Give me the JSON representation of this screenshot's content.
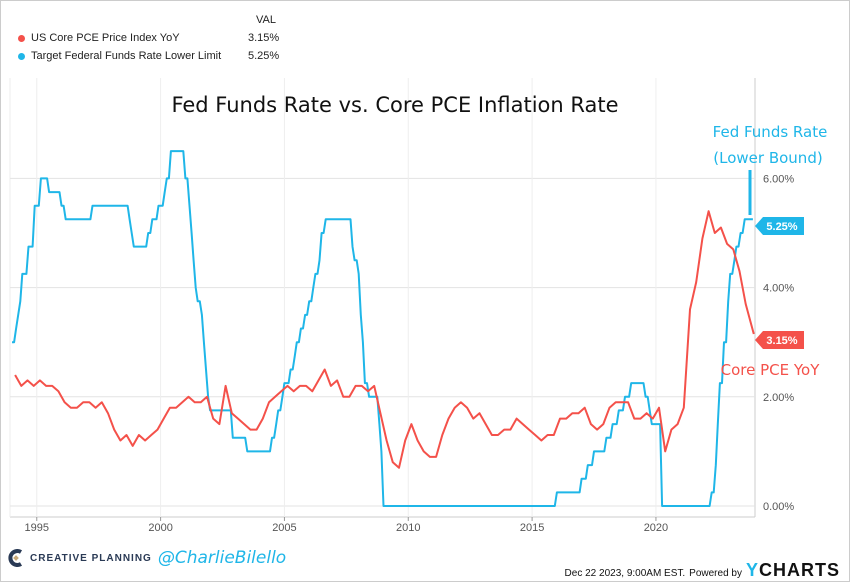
{
  "legend": {
    "header": "VAL",
    "items": [
      {
        "label": "US Core PCE Price Index YoY",
        "value": "3.15%",
        "color": "#f4514a"
      },
      {
        "label": "Target Federal Funds Rate Lower Limit",
        "value": "5.25%",
        "color": "#1fb6e8"
      }
    ]
  },
  "footer": {
    "brand": "CREATIVE PLANNING",
    "handle": "@CharlieBilello",
    "timestamp": "Dec 22 2023, 9:00AM EST.",
    "powered_by": "Powered by",
    "ycharts_y": "Y",
    "ycharts_rest": "CHARTS"
  },
  "chart_data": {
    "type": "line",
    "title": "Fed Funds Rate vs. Core PCE Inflation Rate",
    "xlabel": "",
    "ylabel": "",
    "xlim": [
      1994.0,
      2024.0
    ],
    "ylim": [
      0,
      7
    ],
    "x_ticks": [
      "1995",
      "2000",
      "2005",
      "2010",
      "2015",
      "2020"
    ],
    "y_ticks": [
      "0.00%",
      "2.00%",
      "4.00%",
      "6.00%"
    ],
    "grid": true,
    "annotations": {
      "fed_label_line1": "Fed Funds Rate",
      "fed_label_line2": "(Lower Bound)",
      "pce_label": "Core PCE YoY",
      "fed_last": "5.25%",
      "pce_last": "3.15%"
    },
    "series": [
      {
        "name": "Target Federal Funds Rate Lower Limit",
        "color": "#1fb6e8",
        "step_changes": [
          [
            1994.0,
            3.0
          ],
          [
            1994.1,
            3.25
          ],
          [
            1994.2,
            3.5
          ],
          [
            1994.3,
            3.75
          ],
          [
            1994.4,
            4.25
          ],
          [
            1994.6,
            4.75
          ],
          [
            1994.85,
            5.5
          ],
          [
            1995.1,
            6.0
          ],
          [
            1995.5,
            5.75
          ],
          [
            1995.95,
            5.5
          ],
          [
            1996.1,
            5.25
          ],
          [
            1997.2,
            5.5
          ],
          [
            1998.7,
            5.25
          ],
          [
            1998.8,
            5.0
          ],
          [
            1998.9,
            4.75
          ],
          [
            1999.5,
            5.0
          ],
          [
            1999.65,
            5.25
          ],
          [
            1999.9,
            5.5
          ],
          [
            2000.1,
            5.75
          ],
          [
            2000.2,
            6.0
          ],
          [
            2000.4,
            6.5
          ],
          [
            2001.0,
            6.0
          ],
          [
            2001.1,
            5.5
          ],
          [
            2001.2,
            5.0
          ],
          [
            2001.3,
            4.5
          ],
          [
            2001.4,
            4.0
          ],
          [
            2001.5,
            3.75
          ],
          [
            2001.65,
            3.5
          ],
          [
            2001.7,
            3.0
          ],
          [
            2001.8,
            2.5
          ],
          [
            2001.85,
            2.0
          ],
          [
            2001.95,
            1.75
          ],
          [
            2002.85,
            1.25
          ],
          [
            2003.5,
            1.0
          ],
          [
            2004.5,
            1.25
          ],
          [
            2004.65,
            1.5
          ],
          [
            2004.75,
            1.75
          ],
          [
            2004.9,
            2.0
          ],
          [
            2005.0,
            2.25
          ],
          [
            2005.2,
            2.5
          ],
          [
            2005.35,
            2.75
          ],
          [
            2005.5,
            3.0
          ],
          [
            2005.65,
            3.25
          ],
          [
            2005.8,
            3.5
          ],
          [
            2005.95,
            3.75
          ],
          [
            2006.1,
            4.0
          ],
          [
            2006.2,
            4.25
          ],
          [
            2006.35,
            4.5
          ],
          [
            2006.45,
            4.75
          ],
          [
            2006.5,
            5.0
          ],
          [
            2006.6,
            5.25
          ],
          [
            2007.7,
            4.75
          ],
          [
            2007.8,
            4.5
          ],
          [
            2007.95,
            4.25
          ],
          [
            2008.05,
            3.5
          ],
          [
            2008.1,
            3.0
          ],
          [
            2008.2,
            2.25
          ],
          [
            2008.35,
            2.0
          ],
          [
            2008.8,
            1.5
          ],
          [
            2008.85,
            1.0
          ],
          [
            2008.95,
            0.0
          ],
          [
            2015.95,
            0.25
          ],
          [
            2016.95,
            0.5
          ],
          [
            2017.2,
            0.75
          ],
          [
            2017.45,
            1.0
          ],
          [
            2017.95,
            1.25
          ],
          [
            2018.2,
            1.5
          ],
          [
            2018.45,
            1.75
          ],
          [
            2018.7,
            2.0
          ],
          [
            2018.95,
            2.25
          ],
          [
            2019.55,
            2.0
          ],
          [
            2019.7,
            1.75
          ],
          [
            2019.8,
            1.5
          ],
          [
            2020.2,
            0.0
          ],
          [
            2022.2,
            0.25
          ],
          [
            2022.35,
            0.75
          ],
          [
            2022.45,
            1.5
          ],
          [
            2022.55,
            2.25
          ],
          [
            2022.7,
            3.0
          ],
          [
            2022.85,
            3.75
          ],
          [
            2022.95,
            4.25
          ],
          [
            2023.1,
            4.5
          ],
          [
            2023.2,
            4.75
          ],
          [
            2023.35,
            5.0
          ],
          [
            2023.55,
            5.25
          ],
          [
            2023.96,
            5.25
          ]
        ]
      },
      {
        "name": "US Core PCE Price Index YoY",
        "color": "#f4514a",
        "start": 1994.0,
        "step": 0.25,
        "values": [
          2.4,
          2.2,
          2.3,
          2.2,
          2.3,
          2.2,
          2.2,
          2.1,
          1.9,
          1.8,
          1.8,
          1.9,
          1.9,
          1.8,
          1.9,
          1.7,
          1.4,
          1.2,
          1.3,
          1.1,
          1.3,
          1.2,
          1.3,
          1.4,
          1.6,
          1.8,
          1.8,
          1.9,
          2.0,
          1.9,
          1.9,
          2.0,
          1.6,
          1.5,
          2.2,
          1.7,
          1.6,
          1.5,
          1.4,
          1.4,
          1.6,
          1.9,
          2.0,
          2.1,
          2.2,
          2.1,
          2.2,
          2.2,
          2.1,
          2.3,
          2.5,
          2.2,
          2.3,
          2.0,
          2.0,
          2.2,
          2.2,
          2.1,
          2.2,
          1.7,
          1.2,
          0.8,
          0.7,
          1.2,
          1.5,
          1.2,
          1.0,
          0.9,
          0.9,
          1.3,
          1.6,
          1.8,
          1.9,
          1.8,
          1.6,
          1.7,
          1.5,
          1.3,
          1.3,
          1.4,
          1.4,
          1.6,
          1.5,
          1.4,
          1.3,
          1.2,
          1.3,
          1.3,
          1.6,
          1.6,
          1.7,
          1.7,
          1.8,
          1.5,
          1.4,
          1.5,
          1.8,
          1.9,
          1.9,
          1.9,
          1.6,
          1.6,
          1.7,
          1.6,
          1.8,
          1.0,
          1.4,
          1.5,
          1.8,
          3.6,
          4.1,
          4.9,
          5.4,
          5.0,
          5.1,
          4.8,
          4.7,
          4.3,
          3.7,
          3.15
        ]
      }
    ]
  }
}
